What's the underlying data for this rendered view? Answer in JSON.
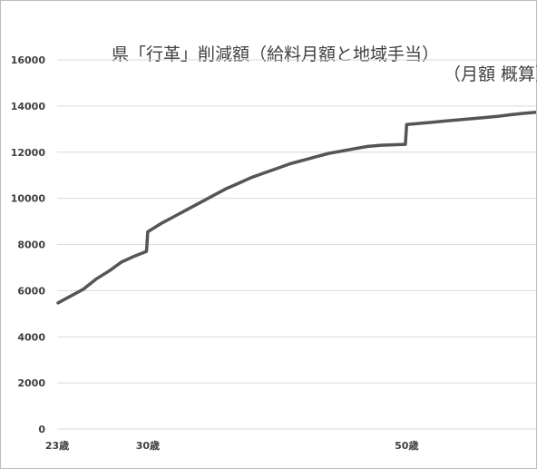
{
  "chart_data": {
    "type": "line",
    "title": "県「行革」削減額（給料月額と地域手当）",
    "subtitle": "（月額 概算）",
    "xlabel": "",
    "ylabel": "",
    "ylim": [
      0,
      16000
    ],
    "yticks": [
      0,
      2000,
      4000,
      6000,
      8000,
      10000,
      12000,
      14000,
      16000
    ],
    "xlim": [
      23,
      60
    ],
    "xticks": [
      {
        "value": 23,
        "label": "23歳"
      },
      {
        "value": 30,
        "label": "30歳"
      },
      {
        "value": 50,
        "label": "50歳"
      }
    ],
    "grid": true,
    "legend": "none",
    "series": [
      {
        "color": "#555555",
        "x": [
          23,
          24,
          25,
          26,
          27,
          28,
          29,
          29.9,
          30.0,
          31,
          32,
          33,
          34,
          35,
          36,
          37,
          38,
          39,
          40,
          41,
          42,
          43,
          44,
          45,
          46,
          47,
          48,
          49,
          49.9,
          50.0,
          51,
          52,
          53,
          54,
          55,
          56,
          57,
          58,
          59,
          60
        ],
        "values": [
          5450,
          5750,
          6050,
          6500,
          6850,
          7250,
          7500,
          7700,
          8550,
          8900,
          9200,
          9500,
          9800,
          10100,
          10400,
          10650,
          10900,
          11100,
          11300,
          11500,
          11650,
          11800,
          11950,
          12050,
          12150,
          12250,
          12300,
          12320,
          12340,
          13200,
          13250,
          13300,
          13350,
          13400,
          13450,
          13500,
          13550,
          13620,
          13680,
          13730
        ]
      }
    ]
  }
}
